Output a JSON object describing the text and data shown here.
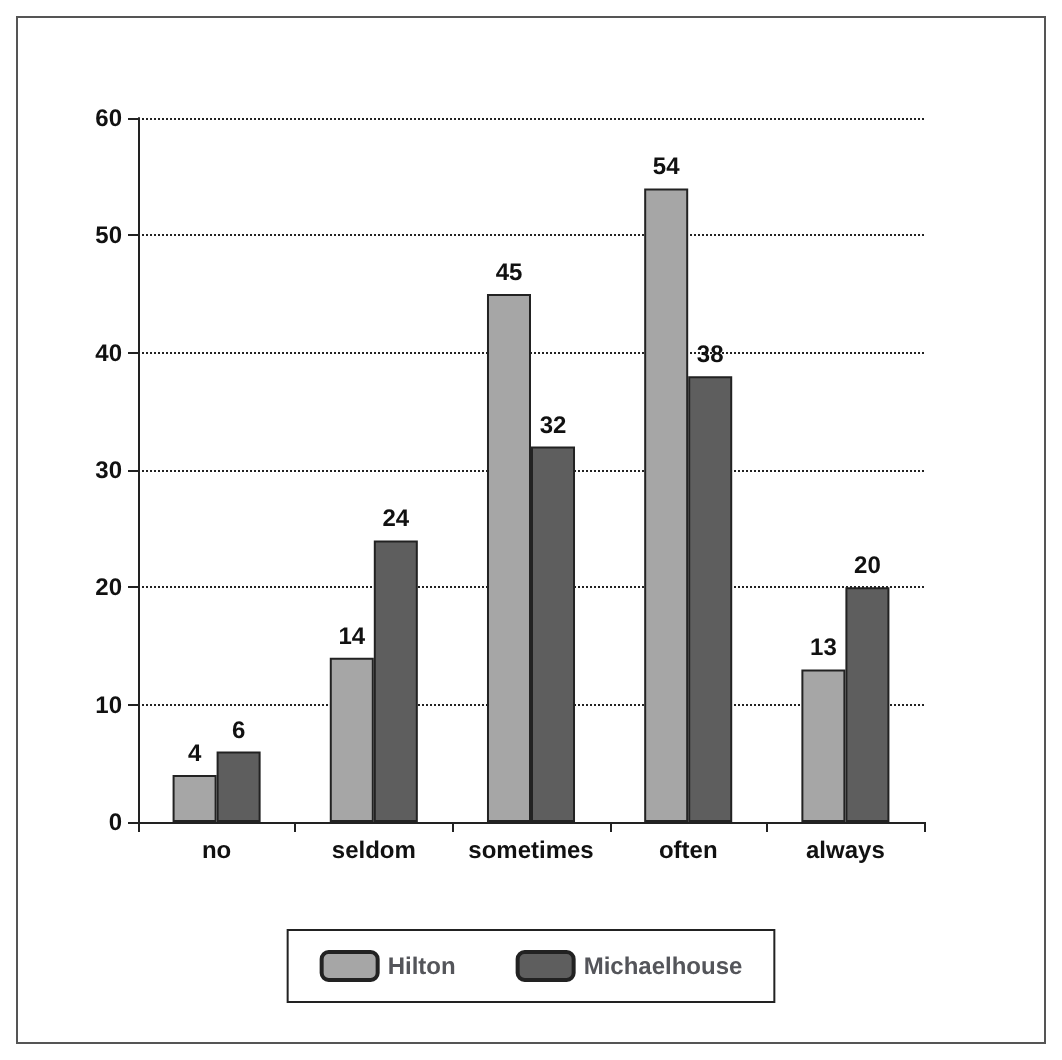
{
  "chart_data": {
    "type": "bar",
    "categories": [
      "no",
      "seldom",
      "sometimes",
      "often",
      "always"
    ],
    "series": [
      {
        "name": "Hilton",
        "color": "#a6a6a6",
        "values": [
          4,
          14,
          45,
          54,
          13
        ]
      },
      {
        "name": "Michaelhouse",
        "color": "#5e5e5e",
        "values": [
          6,
          24,
          32,
          38,
          20
        ]
      }
    ],
    "ylim": [
      0,
      60
    ],
    "yticks": [
      0,
      10,
      20,
      30,
      40,
      50,
      60
    ],
    "grid": "y",
    "legend": "bottom",
    "data_labels": true
  }
}
